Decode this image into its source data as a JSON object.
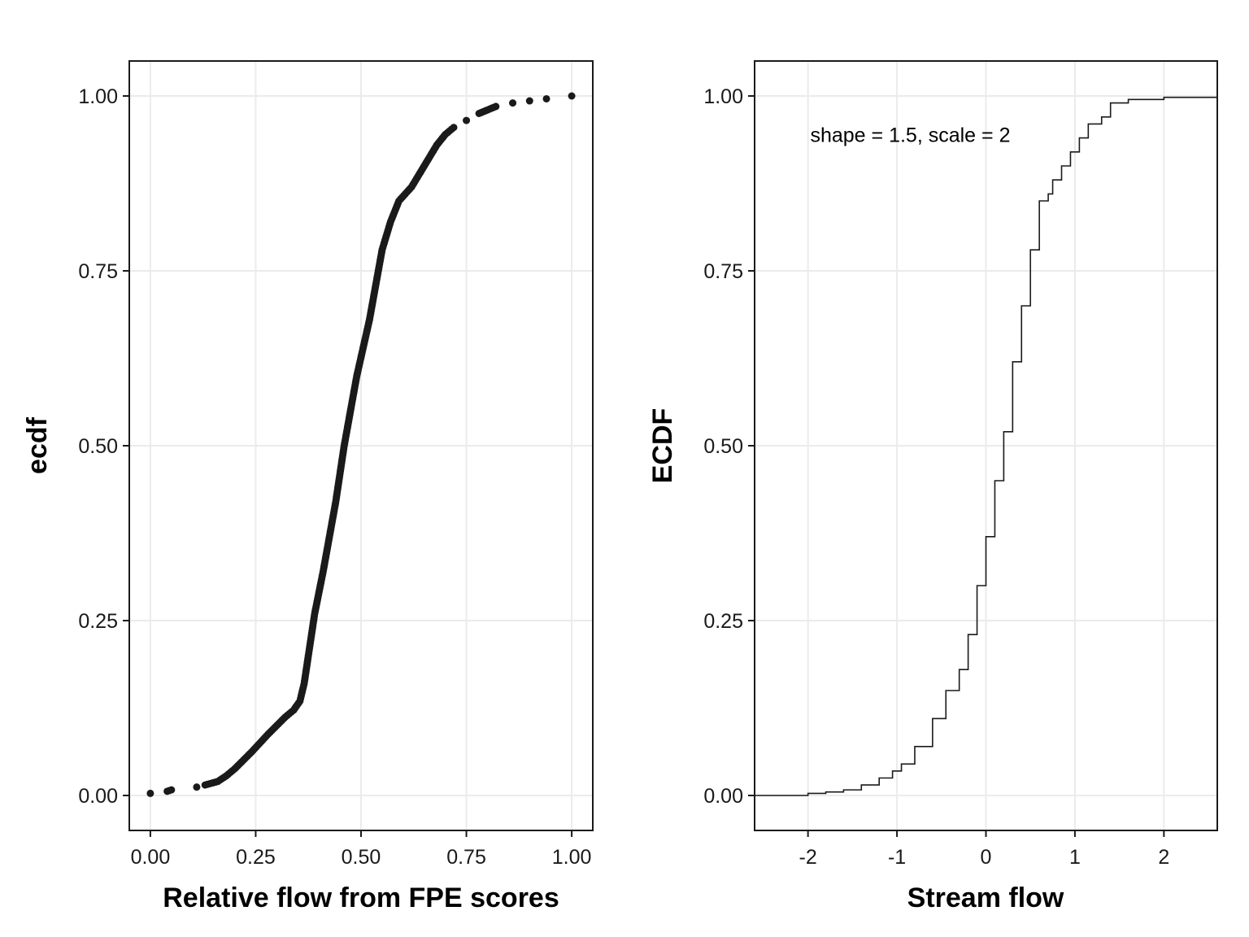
{
  "colors": {
    "grid": "#ebebeb",
    "ink": "#1a1a1a",
    "frame": "#1a1a1a"
  },
  "chart_data": [
    {
      "type": "scatter",
      "title": "",
      "xlabel": "Relative flow from FPE scores",
      "ylabel": "ecdf",
      "xlim": [
        -0.05,
        1.05
      ],
      "ylim": [
        -0.05,
        1.05
      ],
      "grid": true,
      "x_ticks": [
        0.0,
        0.25,
        0.5,
        0.75,
        1.0
      ],
      "x_tick_labels": [
        "0.00",
        "0.25",
        "0.50",
        "0.75",
        "1.00"
      ],
      "y_ticks": [
        0.0,
        0.25,
        0.5,
        0.75,
        1.0
      ],
      "y_tick_labels": [
        "0.00",
        "0.25",
        "0.50",
        "0.75",
        "1.00"
      ],
      "series": [
        {
          "x": [
            0.0,
            0.04,
            0.05,
            0.11,
            0.13,
            0.16,
            0.18,
            0.2,
            0.22,
            0.24,
            0.26,
            0.28,
            0.3,
            0.32,
            0.34,
            0.355,
            0.365,
            0.375,
            0.39,
            0.41,
            0.425,
            0.44,
            0.45,
            0.46,
            0.475,
            0.49,
            0.505,
            0.52,
            0.535,
            0.55,
            0.57,
            0.59,
            0.605,
            0.62,
            0.64,
            0.66,
            0.68,
            0.7,
            0.72,
            0.75,
            0.78,
            0.8,
            0.82,
            0.86,
            0.9,
            0.94,
            1.0
          ],
          "y": [
            0.003,
            0.006,
            0.008,
            0.012,
            0.015,
            0.02,
            0.028,
            0.038,
            0.05,
            0.062,
            0.075,
            0.088,
            0.1,
            0.112,
            0.122,
            0.135,
            0.16,
            0.2,
            0.26,
            0.32,
            0.37,
            0.42,
            0.46,
            0.5,
            0.55,
            0.6,
            0.64,
            0.68,
            0.73,
            0.78,
            0.82,
            0.85,
            0.86,
            0.87,
            0.89,
            0.91,
            0.93,
            0.945,
            0.955,
            0.965,
            0.975,
            0.98,
            0.985,
            0.99,
            0.993,
            0.996,
            1.0
          ]
        }
      ]
    },
    {
      "type": "line",
      "title": "",
      "xlabel": "Stream flow",
      "ylabel": "ECDF",
      "xlim": [
        -2.6,
        2.6
      ],
      "ylim": [
        -0.05,
        1.05
      ],
      "grid": true,
      "step": true,
      "x_ticks": [
        -2,
        -1,
        0,
        1,
        2
      ],
      "x_tick_labels": [
        "-2",
        "-1",
        "0",
        "1",
        "2"
      ],
      "y_ticks": [
        0.0,
        0.25,
        0.5,
        0.75,
        1.0
      ],
      "y_tick_labels": [
        "0.00",
        "0.25",
        "0.50",
        "0.75",
        "1.00"
      ],
      "annotations": [
        {
          "text": "shape = 1.5, scale = 2",
          "x": -0.85,
          "y": 0.945
        }
      ],
      "series": [
        {
          "x": [
            -2.6,
            -2.0,
            -1.8,
            -1.6,
            -1.4,
            -1.2,
            -1.05,
            -0.95,
            -0.8,
            -0.6,
            -0.45,
            -0.3,
            -0.2,
            -0.1,
            0.0,
            0.1,
            0.2,
            0.3,
            0.4,
            0.5,
            0.6,
            0.7,
            0.75,
            0.85,
            0.95,
            1.05,
            1.15,
            1.3,
            1.4,
            1.6,
            2.0,
            2.6
          ],
          "y": [
            0.0,
            0.003,
            0.005,
            0.008,
            0.015,
            0.025,
            0.035,
            0.045,
            0.07,
            0.11,
            0.15,
            0.18,
            0.23,
            0.3,
            0.37,
            0.45,
            0.52,
            0.62,
            0.7,
            0.78,
            0.85,
            0.86,
            0.88,
            0.9,
            0.92,
            0.94,
            0.96,
            0.97,
            0.99,
            0.995,
            0.998,
            1.0
          ]
        }
      ]
    }
  ]
}
